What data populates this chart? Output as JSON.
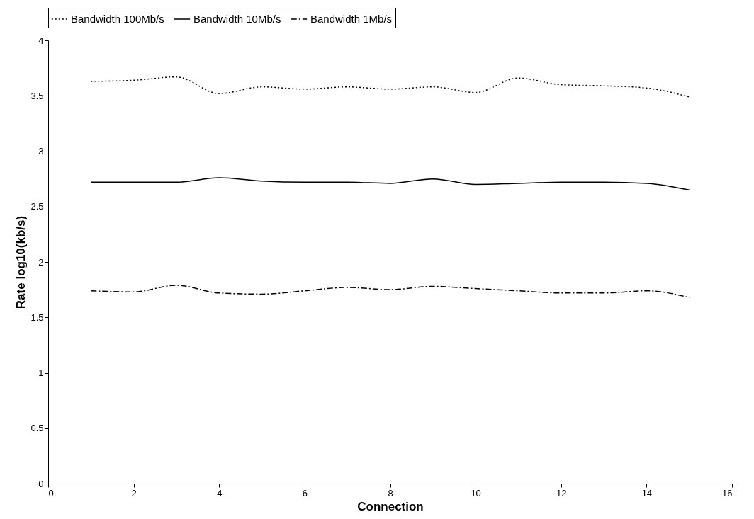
{
  "chart_data": {
    "type": "line",
    "xlabel": "Connection",
    "ylabel": "Rate log10(kb/s)",
    "x": [
      1,
      2,
      3,
      4,
      5,
      6,
      7,
      8,
      9,
      10,
      11,
      12,
      13,
      14,
      15
    ],
    "xlim": [
      0,
      16
    ],
    "xticks": [
      0,
      2,
      4,
      6,
      8,
      10,
      12,
      14,
      16
    ],
    "ylim": [
      0,
      4
    ],
    "yticks": [
      0,
      0.5,
      1,
      1.5,
      2,
      2.5,
      3,
      3.5,
      4
    ],
    "grid": false,
    "legend": "top",
    "marker": "none",
    "series": [
      {
        "name": "Bandwidth 100Mb/s",
        "color": "#000000",
        "line_style": "dotted",
        "values": [
          3.63,
          3.64,
          3.67,
          3.52,
          3.58,
          3.56,
          3.58,
          3.56,
          3.58,
          3.53,
          3.66,
          3.6,
          3.59,
          3.57,
          3.49
        ]
      },
      {
        "name": "Bandwidth 10Mb/s",
        "color": "#000000",
        "line_style": "solid",
        "values": [
          2.72,
          2.72,
          2.72,
          2.76,
          2.73,
          2.72,
          2.72,
          2.71,
          2.75,
          2.7,
          2.71,
          2.72,
          2.72,
          2.71,
          2.65
        ]
      },
      {
        "name": "Bandwidth 1Mb/s",
        "color": "#000000",
        "line_style": "dashdot",
        "values": [
          1.74,
          1.73,
          1.79,
          1.72,
          1.71,
          1.74,
          1.77,
          1.75,
          1.78,
          1.76,
          1.74,
          1.72,
          1.72,
          1.74,
          1.68
        ]
      }
    ]
  }
}
